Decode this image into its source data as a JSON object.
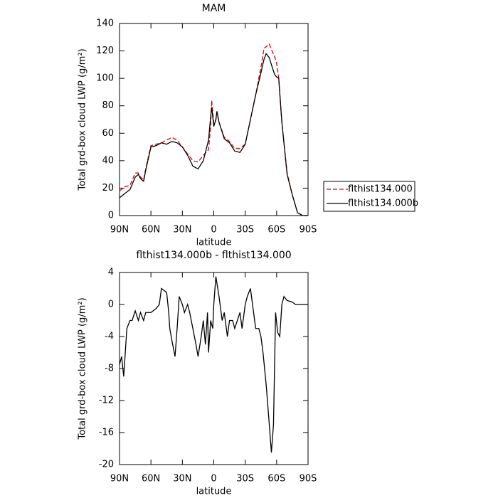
{
  "chart_data": [
    {
      "type": "line",
      "title": "MAM",
      "xlabel": "latitude",
      "ylabel": "Total grd-box cloud LWP (g/m²)",
      "x": [
        90,
        85,
        80,
        75,
        72,
        70,
        67,
        65,
        60,
        55,
        50,
        45,
        40,
        35,
        30,
        25,
        20,
        15,
        10,
        5,
        3,
        2,
        0,
        -2,
        -3,
        -5,
        -10,
        -15,
        -20,
        -25,
        -30,
        -35,
        -40,
        -45,
        -48,
        -50,
        -53,
        -55,
        -58,
        -60,
        -62,
        -65,
        -70,
        -75,
        -80,
        -85,
        -90
      ],
      "series": [
        {
          "name": "flthist134.000",
          "color": "#e00000",
          "dashed": true,
          "values": [
            18,
            21,
            22,
            31,
            31,
            28,
            26,
            34,
            51,
            52,
            53,
            55,
            57,
            55,
            50,
            45,
            40,
            39,
            44,
            48,
            65,
            84,
            67,
            70,
            75,
            68,
            57,
            54,
            49,
            49,
            52,
            70,
            88,
            108,
            122,
            123,
            125,
            121,
            116,
            111,
            100,
            68,
            31,
            15,
            2,
            0,
            0
          ]
        },
        {
          "name": "flthist134.000b",
          "color": "#000000",
          "dashed": false,
          "values": [
            13,
            16,
            19,
            28,
            30,
            27,
            25,
            33,
            50,
            51,
            53,
            52,
            54,
            53,
            50,
            44,
            36,
            34,
            40,
            55,
            72,
            79,
            65,
            70,
            76,
            68,
            56,
            53,
            47,
            46,
            52,
            70,
            88,
            104,
            114,
            118,
            115,
            110,
            103,
            101,
            100,
            68,
            30,
            15,
            2,
            0,
            0
          ]
        }
      ],
      "xlim": [
        90,
        -90
      ],
      "xticks": [
        {
          "value": 90,
          "label": "90N"
        },
        {
          "value": 60,
          "label": "60N"
        },
        {
          "value": 30,
          "label": "30N"
        },
        0,
        {
          "value": -30,
          "label": "30S"
        },
        {
          "value": -60,
          "label": "60S"
        },
        {
          "value": -90,
          "label": "90S"
        }
      ],
      "ylim": [
        0,
        140
      ],
      "yticks": [
        0,
        20,
        40,
        60,
        80,
        100,
        120,
        140
      ],
      "legend": "outside right"
    },
    {
      "type": "line",
      "title": "flthist134.000b - flthist134.000",
      "xlabel": "latitude",
      "ylabel": "Total grd-box cloud LWP (g/m²)",
      "x": [
        90,
        88,
        86,
        83,
        80,
        78,
        75,
        72,
        70,
        67,
        65,
        60,
        55,
        52,
        50,
        45,
        43,
        42,
        40,
        37,
        35,
        33,
        30,
        28,
        25,
        23,
        20,
        17,
        15,
        12,
        10,
        8,
        6,
        5,
        3,
        1,
        0,
        -2,
        -5,
        -8,
        -10,
        -13,
        -15,
        -18,
        -20,
        -25,
        -27,
        -30,
        -32,
        -35,
        -37,
        -40,
        -43,
        -45,
        -47,
        -50,
        -53,
        -55,
        -57,
        -59,
        -61,
        -63,
        -65,
        -67,
        -70,
        -75,
        -78,
        -80,
        -90
      ],
      "series": [
        {
          "color": "#000000",
          "dashed": false,
          "values": [
            -7.5,
            -6.5,
            -9,
            -3,
            -2,
            -2,
            -0.8,
            -2,
            -1,
            -2,
            -1,
            -1,
            -0.5,
            0,
            2,
            1.5,
            -1,
            -3,
            -4.5,
            -6.5,
            -3,
            1,
            0,
            -1,
            0,
            -1,
            -3,
            -5,
            -6.5,
            -4,
            -2,
            -5,
            -1,
            -6,
            -2,
            -3,
            0,
            3.5,
            1,
            -2,
            -1,
            -4,
            -2,
            -2,
            -3,
            -1,
            -3,
            0,
            1,
            2,
            0,
            -3,
            -3,
            -4,
            -6,
            -10,
            -15,
            -18.5,
            -15,
            -1,
            -3.5,
            -4,
            0,
            1,
            0.5,
            0.3,
            0,
            0,
            0
          ]
        }
      ],
      "xlim": [
        90,
        -90
      ],
      "xticks": [
        {
          "value": 90,
          "label": "90N"
        },
        {
          "value": 60,
          "label": "60N"
        },
        {
          "value": 30,
          "label": "30N"
        },
        0,
        {
          "value": -30,
          "label": "30S"
        },
        {
          "value": -60,
          "label": "60S"
        },
        {
          "value": -90,
          "label": "90S"
        }
      ],
      "ylim": [
        -20,
        4
      ],
      "yticks": [
        -20,
        -16,
        -12,
        -8,
        -4,
        0,
        4
      ]
    }
  ]
}
